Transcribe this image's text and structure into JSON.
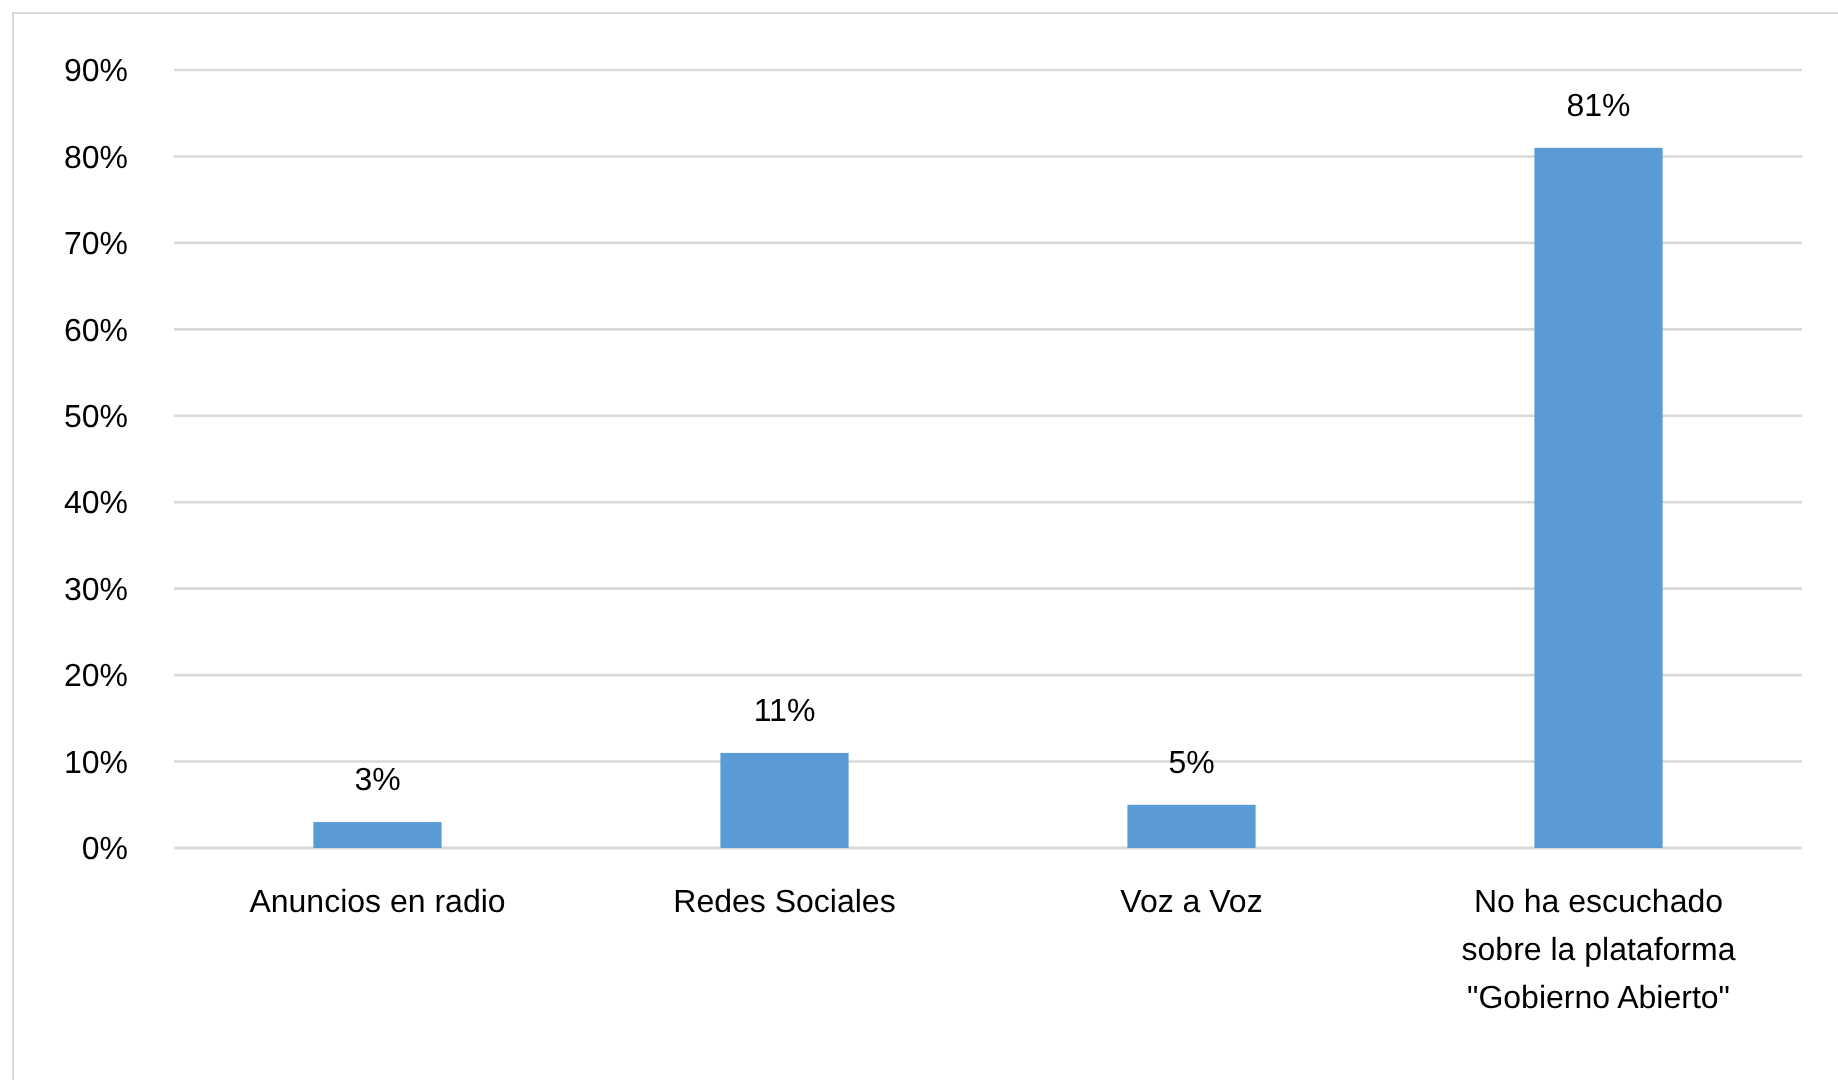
{
  "chart_data": {
    "type": "bar",
    "categories": [
      "Anuncios en radio",
      "Redes Sociales",
      "Voz a Voz",
      "No ha escuchado sobre la plataforma \"Gobierno Abierto\""
    ],
    "values": [
      3,
      11,
      5,
      81
    ],
    "color": "#5b9bd5",
    "value_labels": [
      "3%",
      "11%",
      "5%",
      "81%"
    ],
    "ylim": [
      0,
      90
    ],
    "yticks": [
      {
        "value": 0,
        "label": "0%"
      },
      {
        "value": 10,
        "label": "10%"
      },
      {
        "value": 20,
        "label": "20%"
      },
      {
        "value": 30,
        "label": "30%"
      },
      {
        "value": 40,
        "label": "40%"
      },
      {
        "value": 50,
        "label": "50%"
      },
      {
        "value": 60,
        "label": "60%"
      },
      {
        "value": 70,
        "label": "70%"
      },
      {
        "value": 80,
        "label": "80%"
      },
      {
        "value": 90,
        "label": "90%"
      }
    ],
    "grid": "y"
  }
}
